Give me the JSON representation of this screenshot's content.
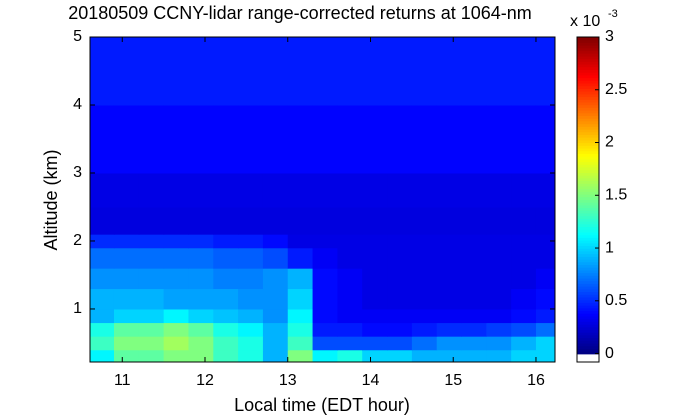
{
  "chart_data": {
    "type": "heatmap",
    "title": "20180509 CCNY-lidar range-corrected returns at 1064-nm",
    "x_label": "Local time (EDT hour)",
    "y_label": "Altitude (km)",
    "colorbar_multiplier": "x 10",
    "colorbar_exponent": "-3",
    "colormap": "jet",
    "x_edges": [
      10.61,
      10.9,
      11.2,
      11.5,
      11.8,
      12.1,
      12.4,
      12.7,
      13.0,
      13.3,
      13.6,
      13.9,
      14.2,
      14.5,
      14.8,
      15.1,
      15.4,
      15.7,
      16.0,
      16.23
    ],
    "y_edges": [
      0.22,
      0.4,
      0.6,
      0.8,
      1.0,
      1.3,
      1.6,
      1.9,
      2.1,
      2.5,
      3.0,
      4.0,
      5.0
    ],
    "values": [
      [
        1.1,
        1.4,
        1.4,
        1.5,
        1.5,
        1.3,
        1.2,
        0.9,
        1.5,
        1.1,
        1.2,
        1.0,
        1.0,
        0.9,
        0.9,
        0.9,
        0.9,
        1.0,
        1.0
      ],
      [
        1.3,
        1.5,
        1.5,
        1.6,
        1.5,
        1.3,
        1.2,
        0.9,
        1.3,
        0.6,
        0.6,
        0.6,
        0.6,
        0.7,
        0.8,
        0.8,
        0.8,
        0.9,
        1.0
      ],
      [
        1.2,
        1.4,
        1.4,
        1.5,
        1.4,
        1.2,
        1.1,
        0.9,
        1.2,
        0.45,
        0.45,
        0.4,
        0.4,
        0.45,
        0.5,
        0.5,
        0.55,
        0.6,
        0.7
      ],
      [
        0.9,
        1.0,
        1.0,
        1.1,
        1.0,
        0.95,
        0.9,
        0.8,
        1.1,
        0.4,
        0.35,
        0.35,
        0.35,
        0.35,
        0.35,
        0.35,
        0.35,
        0.4,
        0.45
      ],
      [
        0.9,
        0.9,
        0.9,
        0.85,
        0.85,
        0.85,
        0.8,
        0.8,
        1.0,
        0.4,
        0.35,
        0.3,
        0.3,
        0.3,
        0.3,
        0.3,
        0.3,
        0.35,
        0.4
      ],
      [
        0.8,
        0.8,
        0.8,
        0.8,
        0.8,
        0.75,
        0.75,
        0.8,
        0.9,
        0.4,
        0.35,
        0.3,
        0.3,
        0.3,
        0.3,
        0.3,
        0.3,
        0.3,
        0.35
      ],
      [
        0.7,
        0.7,
        0.7,
        0.7,
        0.7,
        0.65,
        0.65,
        0.6,
        0.45,
        0.35,
        0.3,
        0.3,
        0.3,
        0.3,
        0.3,
        0.3,
        0.3,
        0.3,
        0.3
      ],
      [
        0.5,
        0.5,
        0.5,
        0.5,
        0.5,
        0.45,
        0.45,
        0.4,
        0.3,
        0.3,
        0.3,
        0.3,
        0.3,
        0.3,
        0.3,
        0.3,
        0.3,
        0.3,
        0.3
      ],
      [
        0.28,
        0.28,
        0.28,
        0.28,
        0.28,
        0.28,
        0.28,
        0.28,
        0.28,
        0.28,
        0.28,
        0.28,
        0.28,
        0.28,
        0.28,
        0.28,
        0.28,
        0.28,
        0.28
      ],
      [
        0.3,
        0.3,
        0.3,
        0.3,
        0.3,
        0.3,
        0.3,
        0.3,
        0.3,
        0.3,
        0.3,
        0.3,
        0.3,
        0.3,
        0.3,
        0.3,
        0.3,
        0.3,
        0.3
      ],
      [
        0.38,
        0.38,
        0.38,
        0.38,
        0.38,
        0.38,
        0.38,
        0.38,
        0.38,
        0.38,
        0.38,
        0.38,
        0.38,
        0.38,
        0.38,
        0.38,
        0.38,
        0.38,
        0.38
      ],
      [
        0.45,
        0.45,
        0.45,
        0.45,
        0.45,
        0.45,
        0.45,
        0.45,
        0.45,
        0.45,
        0.45,
        0.45,
        0.45,
        0.45,
        0.45,
        0.45,
        0.45,
        0.45,
        0.45
      ]
    ],
    "xlim": [
      10.61,
      16.23
    ],
    "xticks": [
      11,
      12,
      13,
      14,
      15,
      16
    ],
    "ylim": [
      0.22,
      5
    ],
    "yticks": [
      1,
      2,
      3,
      4,
      5
    ],
    "clim": [
      -0.08,
      3
    ],
    "cticks": [
      0,
      0.5,
      1,
      1.5,
      2,
      2.5,
      3
    ]
  }
}
